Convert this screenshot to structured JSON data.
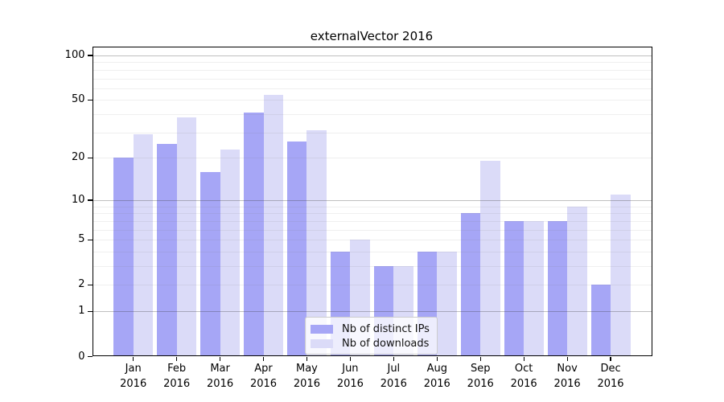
{
  "title": "externalVector 2016",
  "chart_data": {
    "type": "bar",
    "title": "externalVector 2016",
    "months": [
      "Jan",
      "Feb",
      "Mar",
      "Apr",
      "May",
      "Jun",
      "Jul",
      "Aug",
      "Sep",
      "Oct",
      "Nov",
      "Dec"
    ],
    "year": "2016",
    "series": [
      {
        "name": "Nb of distinct IPs",
        "color": "#a6a6f6",
        "values": [
          20,
          25,
          16,
          41,
          26,
          4,
          3,
          4,
          8,
          7,
          7,
          2
        ]
      },
      {
        "name": "Nb of downloads",
        "color": "#dbdbf8",
        "values": [
          29,
          38,
          23,
          54,
          31,
          5,
          3,
          4,
          19,
          7,
          9,
          11
        ]
      }
    ],
    "yscale": "log1p",
    "ylim": [
      0,
      115
    ],
    "y_tick_labels": [
      "0",
      "1",
      "2",
      "5",
      "10",
      "20",
      "50",
      "100"
    ],
    "y_tick_values": [
      0,
      1,
      2,
      5,
      10,
      20,
      50,
      100
    ],
    "y_major_gridlines": [
      1,
      10,
      100
    ],
    "y_minor_gridlines": [
      2,
      3,
      4,
      5,
      6,
      7,
      8,
      9,
      20,
      30,
      40,
      50,
      60,
      70,
      80,
      90
    ],
    "grid": true,
    "legend_position": "lower center",
    "background_color": "#ffffff",
    "axis_color": "#000000"
  }
}
